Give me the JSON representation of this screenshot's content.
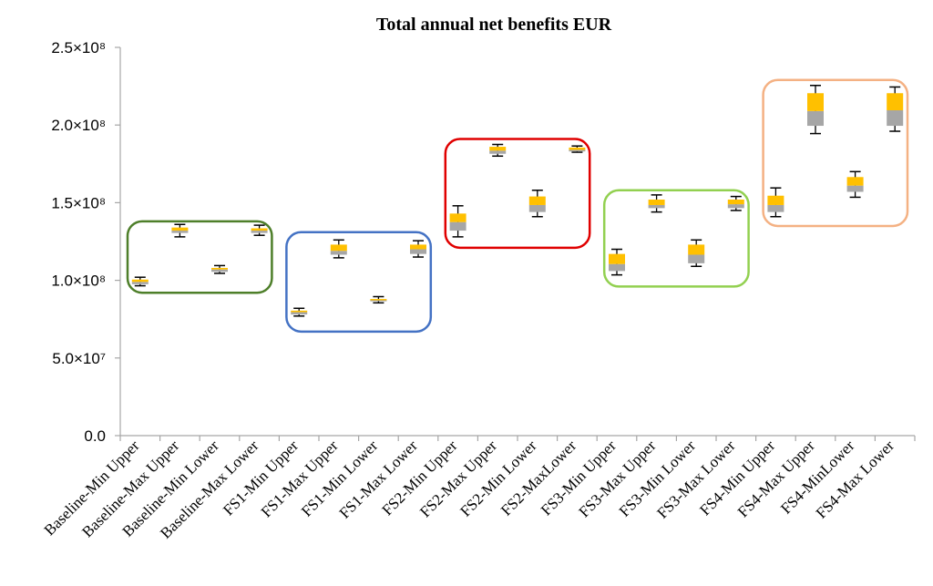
{
  "chart_data": {
    "type": "boxplot",
    "title": "Total annual net benefits EUR",
    "xlabel": "",
    "ylabel": "",
    "ylim": [
      0,
      250000000
    ],
    "yticks": [
      0,
      50000000,
      100000000,
      150000000,
      200000000,
      250000000
    ],
    "ytick_labels": [
      "0.0",
      "5.0×10⁷",
      "1.0×10⁸",
      "1.5×10⁸",
      "2.0×10⁸",
      "2.5×10⁸"
    ],
    "categories": [
      "Baseline-Min Upper",
      "Baseline-Max Upper",
      "Baseline-Min Lower",
      "Baseline-Max Lower",
      "FS1-Min Upper",
      "FS1-Max Upper",
      "FS1-Min Lower",
      "FS1-Max Lower",
      "FS2-Min Upper",
      "FS2-Max Upper",
      "FS2-Min Lower",
      "FS2-MaxLower",
      "FS3-Min Upper",
      "FS3-Max Upper",
      "FS3-Min Lower",
      "FS3-Max Lower",
      "FS4-Min Upper",
      "FS4-Max Upper",
      "FS4-MinLower",
      "FS4-Max Lower"
    ],
    "boxes": [
      {
        "min": 96500000,
        "q1": 97500000,
        "median": 99000000,
        "q3": 100500000,
        "max": 102000000
      },
      {
        "min": 128000000,
        "q1": 130500000,
        "median": 132000000,
        "q3": 134000000,
        "max": 136000000
      },
      {
        "min": 104500000,
        "q1": 105500000,
        "median": 107000000,
        "q3": 108000000,
        "max": 109500000
      },
      {
        "min": 129000000,
        "q1": 130500000,
        "median": 132000000,
        "q3": 133500000,
        "max": 135500000
      },
      {
        "min": 77000000,
        "q1": 78000000,
        "median": 79500000,
        "q3": 80500000,
        "max": 82000000
      },
      {
        "min": 114500000,
        "q1": 116500000,
        "median": 119000000,
        "q3": 123000000,
        "max": 126000000
      },
      {
        "min": 85500000,
        "q1": 86500000,
        "median": 87500000,
        "q3": 88000000,
        "max": 89500000
      },
      {
        "min": 115000000,
        "q1": 117000000,
        "median": 120000000,
        "q3": 123000000,
        "max": 125500000
      },
      {
        "min": 128000000,
        "q1": 132000000,
        "median": 137500000,
        "q3": 143000000,
        "max": 148000000
      },
      {
        "min": 180000000,
        "q1": 181500000,
        "median": 183500000,
        "q3": 186000000,
        "max": 187500000
      },
      {
        "min": 141000000,
        "q1": 144000000,
        "median": 148500000,
        "q3": 154000000,
        "max": 158000000
      },
      {
        "min": 182500000,
        "q1": 183000000,
        "median": 184000000,
        "q3": 185500000,
        "max": 186500000
      },
      {
        "min": 103500000,
        "q1": 106000000,
        "median": 110500000,
        "q3": 117000000,
        "max": 120000000
      },
      {
        "min": 144000000,
        "q1": 146500000,
        "median": 148500000,
        "q3": 152000000,
        "max": 155000000
      },
      {
        "min": 109000000,
        "q1": 111000000,
        "median": 116500000,
        "q3": 123000000,
        "max": 126000000
      },
      {
        "min": 145000000,
        "q1": 146500000,
        "median": 149000000,
        "q3": 152000000,
        "max": 154000000
      },
      {
        "min": 141000000,
        "q1": 144000000,
        "median": 148500000,
        "q3": 154500000,
        "max": 159500000
      },
      {
        "min": 194500000,
        "q1": 199500000,
        "median": 209000000,
        "q3": 220500000,
        "max": 225500000
      },
      {
        "min": 153500000,
        "q1": 157000000,
        "median": 161000000,
        "q3": 166500000,
        "max": 170000000
      },
      {
        "min": 196000000,
        "q1": 199500000,
        "median": 209500000,
        "q3": 220500000,
        "max": 224500000
      }
    ],
    "box_colors": {
      "lower": "#a6a6a6",
      "upper": "#ffc000",
      "whisker": "#000000",
      "axis": "#a6a6a6"
    },
    "groups": [
      {
        "name": "Baseline",
        "start": 0,
        "end": 3,
        "y_low": 92000000,
        "y_high": 138000000,
        "color": "#4e7f2a"
      },
      {
        "name": "FS1",
        "start": 4,
        "end": 7,
        "y_low": 67000000,
        "y_high": 131000000,
        "color": "#4472c4"
      },
      {
        "name": "FS2",
        "start": 8,
        "end": 11,
        "y_low": 121000000,
        "y_high": 191000000,
        "color": "#e00000"
      },
      {
        "name": "FS3",
        "start": 12,
        "end": 15,
        "y_low": 96000000,
        "y_high": 158000000,
        "color": "#92d050"
      },
      {
        "name": "FS4",
        "start": 16,
        "end": 19,
        "y_low": 135000000,
        "y_high": 229000000,
        "color": "#f4b183"
      }
    ]
  }
}
